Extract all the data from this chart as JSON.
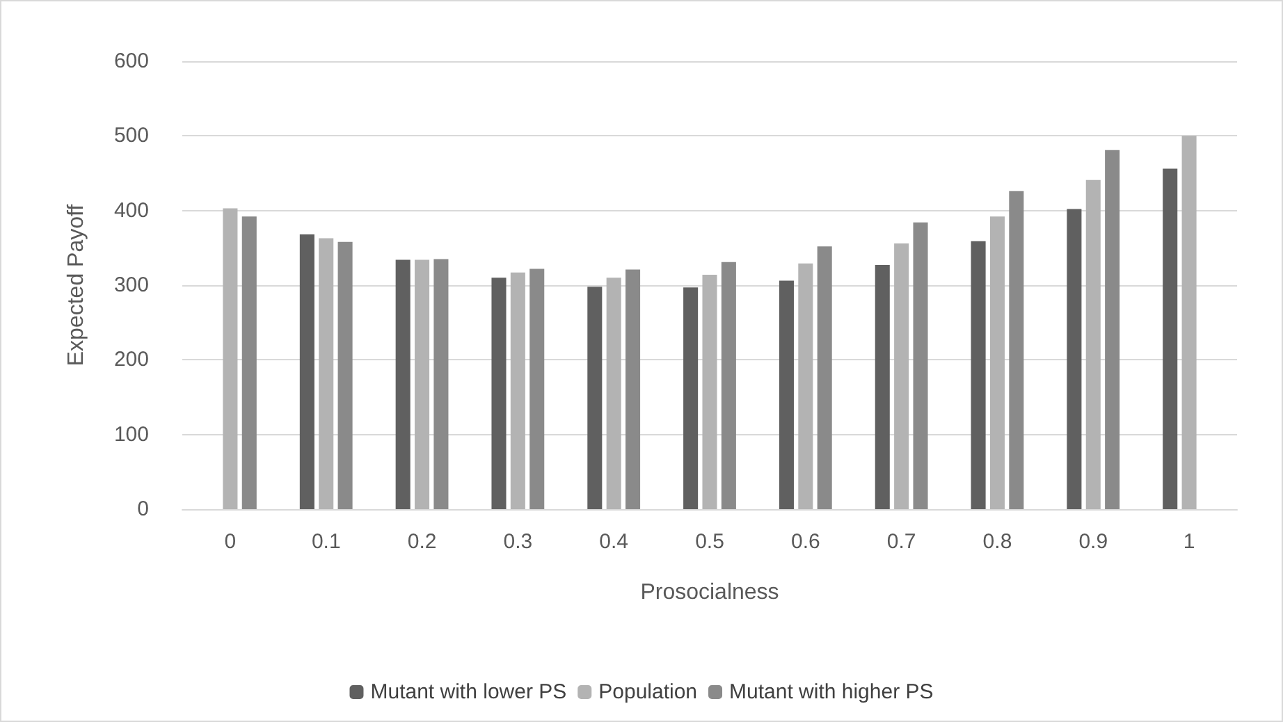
{
  "chart_data": {
    "type": "bar",
    "xlabel": "Prosocialness",
    "ylabel": "Expected Payoff",
    "categories": [
      "0",
      "0.1",
      "0.2",
      "0.3",
      "0.4",
      "0.5",
      "0.6",
      "0.7",
      "0.8",
      "0.9",
      "1"
    ],
    "series": [
      {
        "name": "Mutant with lower PS",
        "color": "#606060",
        "values": [
          null,
          368,
          334,
          310,
          298,
          297,
          306,
          327,
          359,
          402,
          456
        ]
      },
      {
        "name": "Population",
        "color": "#b3b3b3",
        "values": [
          403,
          363,
          334,
          317,
          310,
          314,
          329,
          356,
          392,
          441,
          500
        ]
      },
      {
        "name": "Mutant with higher PS",
        "color": "#8a8a8a",
        "values": [
          392,
          358,
          335,
          322,
          321,
          331,
          352,
          384,
          426,
          481,
          null
        ]
      }
    ],
    "ylim": [
      0,
      600
    ],
    "yticks": [
      0,
      100,
      200,
      300,
      400,
      500,
      600
    ],
    "grid": "y",
    "legend": "bottom"
  }
}
